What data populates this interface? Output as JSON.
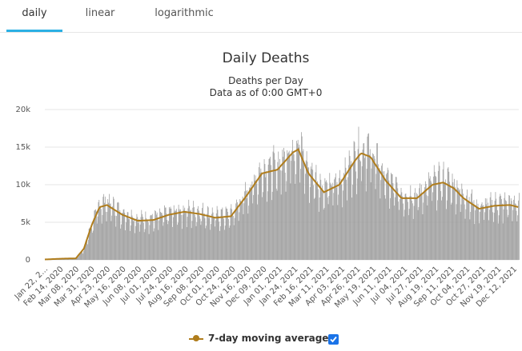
{
  "tabs": [
    {
      "label": "daily"
    },
    {
      "label": "linear"
    },
    {
      "label": "logarithmic"
    }
  ],
  "legend": {
    "label": "7-day moving average",
    "checked": true
  },
  "colors": {
    "bars": "#9e9e9e",
    "line": "#b07d1c",
    "accent": "#2bb0e4"
  },
  "chart_data": {
    "type": "bar",
    "title": "Daily Deaths",
    "subtitle": "Deaths per Day",
    "subtitle2": "Data as of 0:00 GMT+0",
    "ylim": [
      0,
      20000
    ],
    "yticks": [
      "0",
      "5k",
      "10k",
      "15k",
      "20k"
    ],
    "xlabels": [
      "Jan 22, 2...",
      "Feb 14, 2020",
      "Mar 08, 2020",
      "Mar 31, 2020",
      "Apr 23, 2020",
      "May 16, 2020",
      "Jun 08, 2020",
      "Jul 01, 2020",
      "Jul 24, 2020",
      "Aug 16, 2020",
      "Sep 08, 2020",
      "Oct 01, 2020",
      "Oct 24, 2020",
      "Nov 16, 2020",
      "Dec 09, 2020",
      "Jan 01, 2021",
      "Jan 24, 2021",
      "Feb 16, 2021",
      "Mar 11, 2021",
      "Apr 03, 2021",
      "Apr 26, 2021",
      "May 19, 2021",
      "Jun 11, 2021",
      "Jul 04, 2021",
      "Jul 27, 2021",
      "Aug 19, 2021",
      "Sep 11, 2021",
      "Oct 04, 2021",
      "Oct 27, 2021",
      "Nov 19, 2021",
      "Dec 12, 2021"
    ],
    "series": [
      {
        "name": "7-day moving average",
        "type": "line",
        "points": [
          [
            "2020-01-22",
            50
          ],
          [
            "2020-02-14",
            150
          ],
          [
            "2020-03-08",
            200
          ],
          [
            "2020-03-20",
            1500
          ],
          [
            "2020-03-31",
            4500
          ],
          [
            "2020-04-12",
            7000
          ],
          [
            "2020-04-23",
            7300
          ],
          [
            "2020-05-16",
            6000
          ],
          [
            "2020-06-08",
            5200
          ],
          [
            "2020-07-01",
            5300
          ],
          [
            "2020-07-24",
            6000
          ],
          [
            "2020-08-16",
            6400
          ],
          [
            "2020-09-08",
            6100
          ],
          [
            "2020-10-01",
            5600
          ],
          [
            "2020-10-24",
            5800
          ],
          [
            "2020-11-16",
            8500
          ],
          [
            "2020-12-09",
            11500
          ],
          [
            "2021-01-01",
            12000
          ],
          [
            "2021-01-24",
            14300
          ],
          [
            "2021-02-01",
            14700
          ],
          [
            "2021-02-16",
            11500
          ],
          [
            "2021-03-11",
            9000
          ],
          [
            "2021-04-03",
            10000
          ],
          [
            "2021-04-26",
            13200
          ],
          [
            "2021-05-05",
            14200
          ],
          [
            "2021-05-19",
            13700
          ],
          [
            "2021-06-11",
            10500
          ],
          [
            "2021-07-04",
            8200
          ],
          [
            "2021-07-27",
            8200
          ],
          [
            "2021-08-19",
            10000
          ],
          [
            "2021-09-04",
            10300
          ],
          [
            "2021-09-20",
            9500
          ],
          [
            "2021-10-04",
            8200
          ],
          [
            "2021-10-27",
            6800
          ],
          [
            "2021-11-19",
            7200
          ],
          [
            "2021-12-12",
            7300
          ],
          [
            "2021-12-25",
            7000
          ]
        ]
      },
      {
        "name": "daily",
        "type": "bar",
        "note": "daily values fluctuate around the moving average with weekly reporting dips"
      }
    ]
  }
}
